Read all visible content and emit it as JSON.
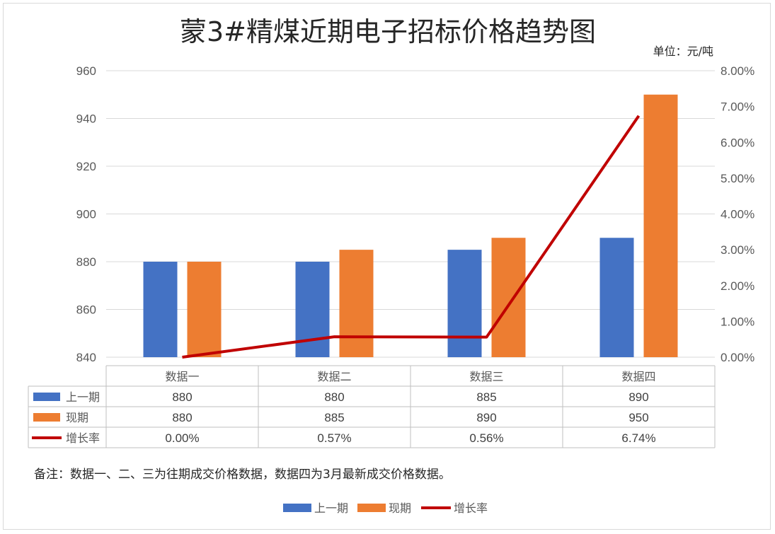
{
  "chart_data": {
    "type": "bar",
    "title": "蒙3#精煤近期电子招标价格趋势图",
    "unit_label": "单位：元/吨",
    "categories": [
      "数据一",
      "数据二",
      "数据三",
      "数据四"
    ],
    "series": [
      {
        "name": "上一期",
        "type": "bar",
        "axis": "left",
        "color": "#4472C4",
        "values": [
          880,
          880,
          885,
          890
        ],
        "display": [
          "880",
          "880",
          "885",
          "890"
        ]
      },
      {
        "name": "现期",
        "type": "bar",
        "axis": "left",
        "color": "#ED7D31",
        "values": [
          880,
          885,
          890,
          950
        ],
        "display": [
          "880",
          "885",
          "890",
          "950"
        ]
      },
      {
        "name": "增长率",
        "type": "line",
        "axis": "right",
        "color": "#C00000",
        "values": [
          0.0,
          0.57,
          0.56,
          6.74
        ],
        "display": [
          "0.00%",
          "0.57%",
          "0.56%",
          "6.74%"
        ]
      }
    ],
    "left_axis": {
      "min": 840,
      "max": 960,
      "ticks": [
        "960",
        "940",
        "920",
        "900",
        "880",
        "860",
        "840"
      ]
    },
    "right_axis": {
      "min": 0,
      "max": 8,
      "ticks": [
        "8.00%",
        "7.00%",
        "6.00%",
        "5.00%",
        "4.00%",
        "3.00%",
        "2.00%",
        "1.00%",
        "0.00%"
      ]
    },
    "grid": true,
    "legend_position": "bottom",
    "data_table": true,
    "note": "备注：数据一、二、三为往期成交价格数据，数据四为3月最新成交价格数据。"
  }
}
